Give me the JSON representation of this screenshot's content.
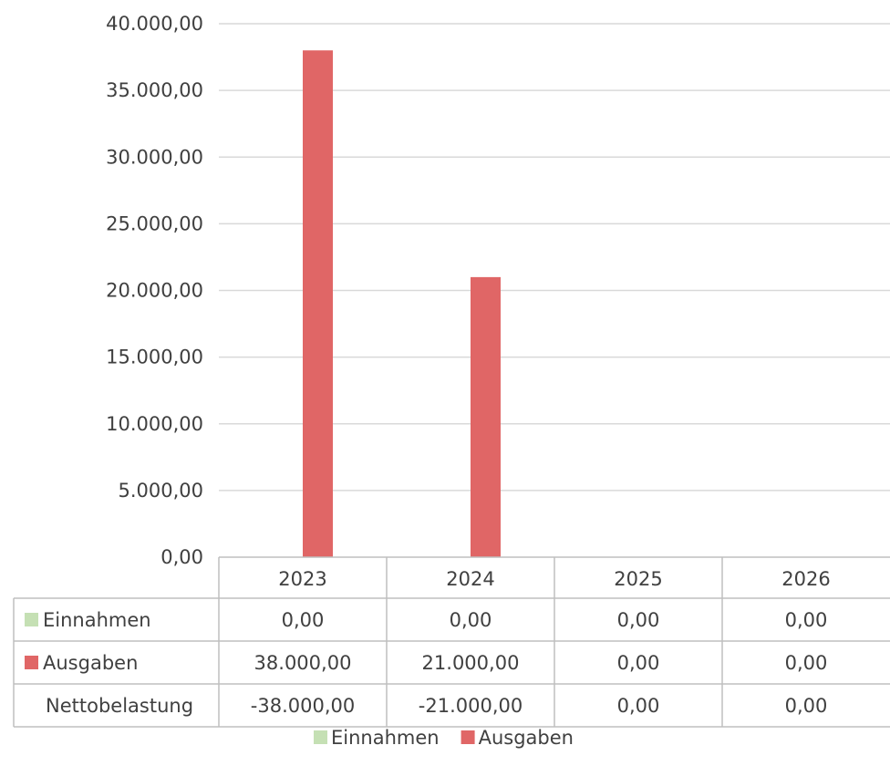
{
  "chart_data": {
    "type": "bar",
    "categories": [
      "2023",
      "2024",
      "2025",
      "2026"
    ],
    "series": [
      {
        "name": "Einnahmen",
        "values": [
          0,
          0,
          0,
          0
        ],
        "color": "#c5e0b4"
      },
      {
        "name": "Ausgaben",
        "values": [
          38000,
          21000,
          0,
          0
        ],
        "color": "#e06666"
      }
    ],
    "ylim": [
      0,
      40000
    ],
    "yticks": [
      "0,00",
      "5.000,00",
      "10.000,00",
      "15.000,00",
      "20.000,00",
      "25.000,00",
      "30.000,00",
      "35.000,00",
      "40.000,00"
    ],
    "ytick_values": [
      0,
      5000,
      10000,
      15000,
      20000,
      25000,
      30000,
      35000,
      40000
    ],
    "grid": true,
    "legend_position": "bottom",
    "data_table": {
      "rows": [
        {
          "label": "Einnahmen",
          "legend_key": true,
          "cells": [
            "0,00",
            "0,00",
            "0,00",
            "0,00"
          ]
        },
        {
          "label": "Ausgaben",
          "legend_key": true,
          "cells": [
            "38.000,00",
            "21.000,00",
            "0,00",
            "0,00"
          ]
        },
        {
          "label": "Nettobelastung",
          "legend_key": false,
          "cells": [
            "-38.000,00",
            "-21.000,00",
            "0,00",
            "0,00"
          ]
        }
      ]
    },
    "colors": {
      "gridline": "#d9d9d9",
      "table_border": "#bfbfbf",
      "text": "#404040"
    }
  }
}
